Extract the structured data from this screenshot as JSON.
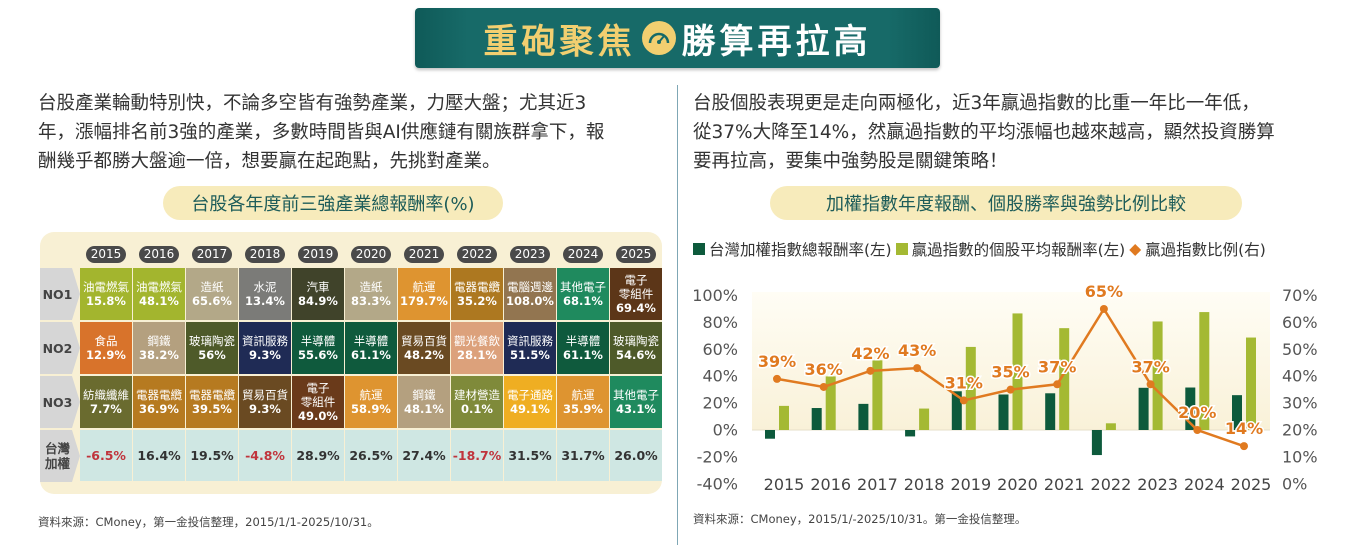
{
  "banner": {
    "title_left": "重砲聚焦",
    "title_right": "勝算再拉高",
    "icon": "speedometer-icon"
  },
  "left": {
    "paragraph": [
      "台股產業輪動特別快，不論多空皆有強勢產業，力壓大盤；尤其近3",
      "年，漲幅排名前3強的產業，多數時間皆與AI供應鏈有關族群拿下，報",
      "酬幾乎都勝大盤逾一倍，想要贏在起跑點，先挑對產業。"
    ],
    "table_title": "台股各年度前三強產業總報酬率(%)",
    "source": "資料來源：CMoney，第一金投信整理，2015/1/1-2025/10/31。"
  },
  "right": {
    "paragraph": [
      "台股個股表現更是走向兩極化，近3年贏過指數的比重一年比一年低，",
      "從37%大降至14%，然贏過指數的平均漲幅也越來越高，顯然投資勝算",
      "要再拉高，要集中強勢股是關鍵策略！"
    ],
    "source": "資料來源：CMoney，2015/1/-2025/10/31。第一金投信整理。"
  },
  "table": {
    "years": [
      "2015",
      "2016",
      "2017",
      "2018",
      "2019",
      "2020",
      "2021",
      "2022",
      "2023",
      "2024",
      "2025"
    ],
    "row_labels": [
      "NO1",
      "NO2",
      "NO3",
      "台灣\n加權"
    ],
    "rows": [
      [
        {
          "name": "油電燃氣",
          "value": "15.8%",
          "color": "#a3b52e"
        },
        {
          "name": "油電燃氣",
          "value": "48.1%",
          "color": "#a3b52e"
        },
        {
          "name": "造紙",
          "value": "65.6%",
          "color": "#b3a888"
        },
        {
          "name": "水泥",
          "value": "13.4%",
          "color": "#7b7b78"
        },
        {
          "name": "汽車",
          "value": "84.9%",
          "color": "#40432a"
        },
        {
          "name": "造紙",
          "value": "83.3%",
          "color": "#b3a888"
        },
        {
          "name": "航運",
          "value": "179.7%",
          "color": "#de9430"
        },
        {
          "name": "電器電纜",
          "value": "35.2%",
          "color": "#ad7820"
        },
        {
          "name": "電腦週邊",
          "value": "108.0%",
          "color": "#927550"
        },
        {
          "name": "其他電子",
          "value": "68.1%",
          "color": "#1f8a5e"
        },
        {
          "name": "電子\n零組件",
          "value": "69.4%",
          "color": "#5c3618"
        }
      ],
      [
        {
          "name": "食品",
          "value": "12.9%",
          "color": "#d8732b"
        },
        {
          "name": "鋼鐵",
          "value": "38.2%",
          "color": "#b4a07f"
        },
        {
          "name": "玻璃陶瓷",
          "value": "56%",
          "color": "#4e5a29"
        },
        {
          "name": "資訊服務",
          "value": "9.3%",
          "color": "#1f2b55"
        },
        {
          "name": "半導體",
          "value": "55.6%",
          "color": "#0f5a3d"
        },
        {
          "name": "半導體",
          "value": "61.1%",
          "color": "#0f5a3d"
        },
        {
          "name": "貿易百貨",
          "value": "48.2%",
          "color": "#6a4a22"
        },
        {
          "name": "觀光餐飲",
          "value": "28.1%",
          "color": "#dca17b"
        },
        {
          "name": "資訊服務",
          "value": "51.5%",
          "color": "#1f2b55"
        },
        {
          "name": "半導體",
          "value": "61.1%",
          "color": "#0f5a3d"
        },
        {
          "name": "玻璃陶瓷",
          "value": "54.6%",
          "color": "#4e5a29"
        }
      ],
      [
        {
          "name": "紡織纖維",
          "value": "7.7%",
          "color": "#6a6b2f"
        },
        {
          "name": "電器電纜",
          "value": "36.9%",
          "color": "#b67a20"
        },
        {
          "name": "電器電纜",
          "value": "39.5%",
          "color": "#b67a20"
        },
        {
          "name": "貿易百貨",
          "value": "9.3%",
          "color": "#6a4a22"
        },
        {
          "name": "電子\n零組件",
          "value": "49.0%",
          "color": "#6a3a1a"
        },
        {
          "name": "航運",
          "value": "58.9%",
          "color": "#de9430"
        },
        {
          "name": "鋼鐵",
          "value": "48.1%",
          "color": "#b4a07f"
        },
        {
          "name": "建材營造",
          "value": "0.1%",
          "color": "#7f8a3a"
        },
        {
          "name": "電子通路",
          "value": "49.1%",
          "color": "#efae22"
        },
        {
          "name": "航運",
          "value": "35.9%",
          "color": "#de9430"
        },
        {
          "name": "其他電子",
          "value": "43.1%",
          "color": "#1f8a5e"
        }
      ]
    ],
    "taiex": [
      "-6.5%",
      "16.4%",
      "19.5%",
      "-4.8%",
      "28.9%",
      "26.5%",
      "27.4%",
      "-18.7%",
      "31.5%",
      "31.7%",
      "26.0%"
    ]
  },
  "chart_data": {
    "type": "bar+line",
    "title": "加權指數年度報酬、個股勝率與強勢比例比較",
    "legend_position": "top",
    "categories": [
      "2015",
      "2016",
      "2017",
      "2018",
      "2019",
      "2020",
      "2021",
      "2022",
      "2023",
      "2024",
      "2025"
    ],
    "series": [
      {
        "name": "台灣加權指數總報酬率(左)",
        "type": "bar",
        "axis": "left",
        "color": "#0d5a3c",
        "values": [
          -6.5,
          16.4,
          19.5,
          -4.8,
          28.9,
          26.5,
          27.4,
          -18.7,
          31.5,
          31.7,
          26.0
        ]
      },
      {
        "name": "贏過指數的個股平均報酬率(左)",
        "type": "bar",
        "axis": "left",
        "color": "#a4b933",
        "values": [
          18,
          40,
          52,
          16,
          62,
          87,
          76,
          5,
          81,
          88,
          69
        ]
      },
      {
        "name": "贏過指數比例(右)",
        "type": "line",
        "axis": "right",
        "color": "#e07a20",
        "values": [
          39,
          36,
          42,
          43,
          31,
          35,
          37,
          65,
          37,
          20,
          14
        ],
        "labels": [
          "39%",
          "36%",
          "42%",
          "43%",
          "31%",
          "35%",
          "37%",
          "65%",
          "37%",
          "20%",
          "14%"
        ]
      }
    ],
    "left_axis": {
      "ylim": [
        -40,
        100
      ],
      "ticks": [
        "100%",
        "80%",
        "60%",
        "40%",
        "20%",
        "0%",
        "-20%",
        "-40%"
      ]
    },
    "right_axis": {
      "ylim": [
        0,
        70
      ],
      "ticks": [
        "70%",
        "60%",
        "50%",
        "40%",
        "30%",
        "20%",
        "10%",
        "0%"
      ]
    }
  }
}
